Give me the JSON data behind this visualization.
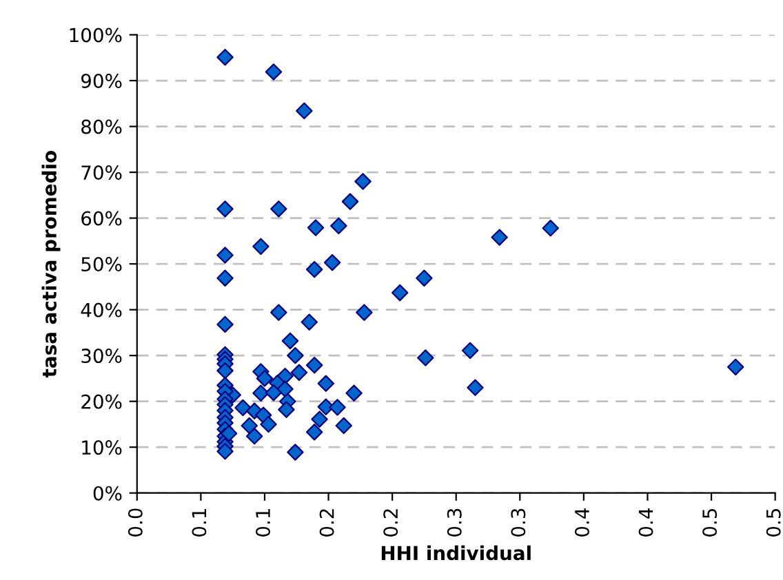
{
  "chart_data": {
    "type": "scatter",
    "xlabel": "HHI individual",
    "ylabel": "tasa activa promedio",
    "marker": "diamond",
    "grid": "y",
    "legend": false,
    "xlim": [
      0,
      0.5
    ],
    "ylim": [
      0,
      100
    ],
    "xticks": [
      {
        "value": 0,
        "label": "0.0"
      },
      {
        "value": 0.05,
        "label": "0.1"
      },
      {
        "value": 0.1,
        "label": "0.1"
      },
      {
        "value": 0.15,
        "label": "0.2"
      },
      {
        "value": 0.2,
        "label": "0.2"
      },
      {
        "value": 0.25,
        "label": "0.3"
      },
      {
        "value": 0.3,
        "label": "0.3"
      },
      {
        "value": 0.35,
        "label": "0.4"
      },
      {
        "value": 0.4,
        "label": "0.4"
      },
      {
        "value": 0.45,
        "label": "0.5"
      },
      {
        "value": 0.5,
        "label": "0.5"
      }
    ],
    "yticks": [
      {
        "value": 0,
        "label": "0%"
      },
      {
        "value": 10,
        "label": "10%"
      },
      {
        "value": 20,
        "label": "20%"
      },
      {
        "value": 30,
        "label": "30%"
      },
      {
        "value": 40,
        "label": "40%"
      },
      {
        "value": 50,
        "label": "50%"
      },
      {
        "value": 60,
        "label": "60%"
      },
      {
        "value": 70,
        "label": "70%"
      },
      {
        "value": 80,
        "label": "80%"
      },
      {
        "value": 90,
        "label": "90%"
      },
      {
        "value": 100,
        "label": "100%"
      }
    ],
    "series": [
      {
        "color": "#0066cc",
        "x": [
          0.069,
          0.107,
          0.131,
          0.177,
          0.167,
          0.069,
          0.111,
          0.14,
          0.158,
          0.097,
          0.069,
          0.153,
          0.139,
          0.069,
          0.206,
          0.178,
          0.111,
          0.135,
          0.069,
          0.12,
          0.124,
          0.069,
          0.069,
          0.069,
          0.069,
          0.139,
          0.097,
          0.1,
          0.116,
          0.127,
          0.11,
          0.148,
          0.116,
          0.097,
          0.107,
          0.17,
          0.118,
          0.075,
          0.083,
          0.092,
          0.099,
          0.117,
          0.148,
          0.157,
          0.143,
          0.103,
          0.088,
          0.162,
          0.139,
          0.092,
          0.124,
          0.069,
          0.069,
          0.069,
          0.069,
          0.069,
          0.069,
          0.069,
          0.069,
          0.069,
          0.069,
          0.069,
          0.069,
          0.072,
          0.284,
          0.324,
          0.225,
          0.261,
          0.226,
          0.469,
          0.265
        ],
        "values": [
          95.1,
          91.9,
          83.4,
          68.0,
          63.6,
          62.0,
          62.0,
          57.9,
          58.3,
          53.8,
          51.9,
          50.3,
          48.8,
          46.9,
          43.7,
          39.4,
          39.4,
          37.3,
          36.8,
          33.2,
          30.0,
          30.2,
          29.2,
          28.2,
          26.7,
          27.9,
          26.5,
          25.0,
          25.5,
          26.3,
          24.0,
          23.9,
          22.7,
          21.8,
          21.9,
          21.8,
          20.0,
          21.4,
          18.6,
          17.9,
          17.0,
          18.2,
          18.8,
          18.7,
          16.1,
          15.0,
          14.7,
          14.7,
          13.3,
          12.4,
          8.9,
          23.5,
          22.2,
          20.5,
          19.3,
          18.0,
          16.5,
          15.3,
          13.9,
          12.4,
          11.2,
          10.2,
          9.1,
          13.0,
          55.8,
          57.8,
          46.9,
          31.1,
          29.5,
          27.5,
          23.0
        ]
      }
    ]
  }
}
